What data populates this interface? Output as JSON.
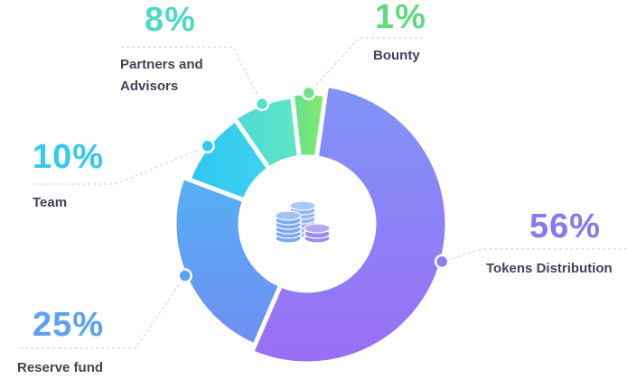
{
  "chart_data": {
    "type": "pie",
    "title": "",
    "slices": [
      {
        "label": "Tokens Distribution",
        "value": 56,
        "display": "56%",
        "color": "#8d7bf2"
      },
      {
        "label": "Reserve fund",
        "value": 25,
        "display": "25%",
        "color": "#5aa2f4"
      },
      {
        "label": "Team",
        "value": 10,
        "display": "10%",
        "color": "#35c9ee"
      },
      {
        "label": "Partners and Advisors",
        "value": 8,
        "display": "8%",
        "color": "#55e0c8"
      },
      {
        "label": "Bounty",
        "value": 1,
        "display": "1%",
        "color": "#6fe289"
      }
    ],
    "center_icon": "coins-icon",
    "legend": "callouts"
  }
}
